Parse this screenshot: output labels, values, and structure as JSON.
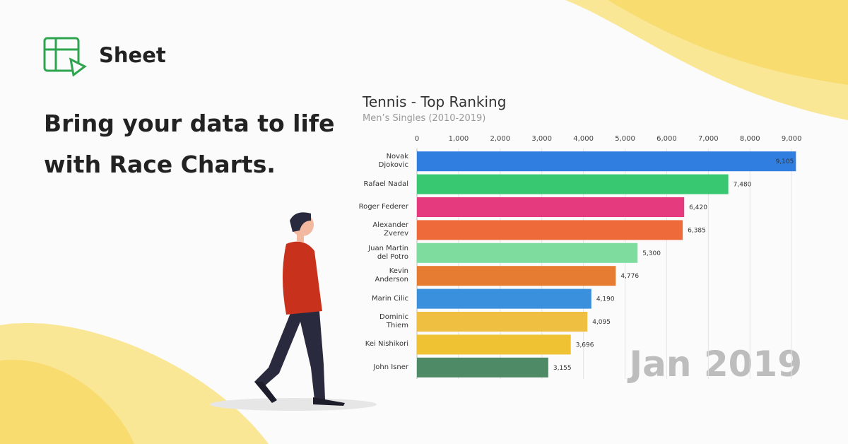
{
  "brand": "Sheet",
  "headline": [
    "Bring your data to life",
    "with Race Charts."
  ],
  "chart_data": {
    "type": "hbar",
    "title": "Tennis - Top Ranking",
    "subtitle": "Men’s Singles (2010-2019)",
    "annotation": "Jan 2019",
    "categories": [
      "Novak\nDjokovic",
      "Rafael Nadal",
      "Roger Federer",
      "Alexander\nZverev",
      "Juan Martin\ndel Potro",
      "Kevin\nAnderson",
      "Marin Cilic",
      "Dominic\nThiem",
      "Kei Nishikori",
      "John Isner"
    ],
    "values": [
      9105,
      7480,
      6420,
      6385,
      5300,
      4776,
      4190,
      4095,
      3696,
      3155
    ],
    "value_labels": [
      "9,105",
      "7,480",
      "6,420",
      "6,385",
      "5,300",
      "4,776",
      "4,190",
      "4,095",
      "3,696",
      "3,155"
    ],
    "colors": [
      "#2f7ee0",
      "#38c872",
      "#e63a7f",
      "#ee6a3a",
      "#7edc9f",
      "#e57c31",
      "#3a90dd",
      "#efbf42",
      "#eec232",
      "#4f8a66"
    ],
    "xlim": [
      0,
      9150
    ],
    "xticks": [
      0,
      {
        "value": 1000,
        "label": "1,000"
      },
      {
        "value": 2000,
        "label": "2,000"
      },
      {
        "value": 3000,
        "label": "3,000"
      },
      {
        "value": 4000,
        "label": "4,000"
      },
      {
        "value": 5000,
        "label": "5,000"
      },
      {
        "value": 6000,
        "label": "6,000"
      },
      {
        "value": 7000,
        "label": "7,000"
      },
      {
        "value": 8000,
        "label": "8,000"
      },
      {
        "value": 9000,
        "label": "9,000"
      }
    ],
    "grid": true
  }
}
